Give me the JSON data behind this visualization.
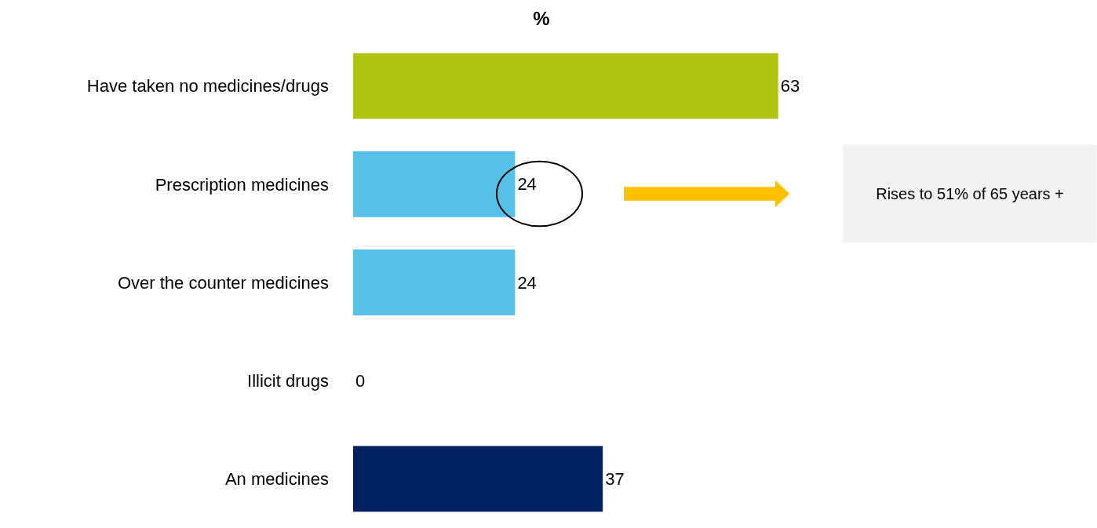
{
  "chart_data": {
    "type": "bar",
    "orientation": "horizontal",
    "title": "%",
    "categories": [
      "Have taken no medicines/drugs",
      "Prescription medicines",
      "Over the counter medicines",
      "Illicit drugs",
      "An medicines"
    ],
    "values": [
      63,
      24,
      24,
      0,
      37
    ],
    "colors": [
      "#b0c412",
      "#56c0e8",
      "#56c0e8",
      "#56c0e8",
      "#002060"
    ],
    "data_labels": true,
    "annotations": [
      "Rises to 51% of 65 years +"
    ]
  }
}
